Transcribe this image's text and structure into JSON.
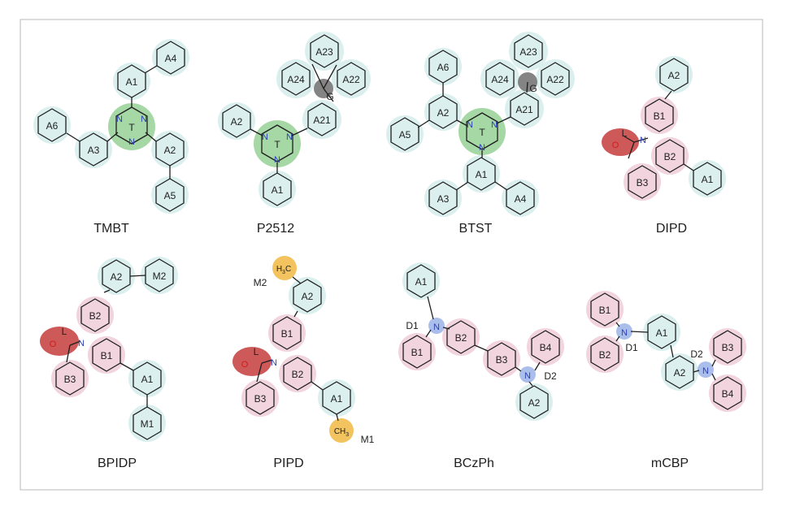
{
  "colors": {
    "frame": "#b9b9b9",
    "ring_stroke": "#1e1e1e",
    "halo_acceptor": "#d5ecec",
    "halo_triazine": "#5cb85c",
    "halo_donor_ring": "#ecc5d3",
    "halo_lactam": "#c0312f",
    "halo_methyl": "#f0b437",
    "halo_spiro": "#6f6f6f",
    "halo_nitrogen": "#8ea8e6",
    "nitrogen_text": "#2b3fb5",
    "oxygen_text": "#d11b1b"
  },
  "molecules": {
    "tmbt": {
      "name": "TMBT",
      "center_label": "T",
      "rings": [
        "A1",
        "A2",
        "A3",
        "A4",
        "A5",
        "A6"
      ],
      "atoms": [
        "N",
        "N",
        "N"
      ]
    },
    "p2512": {
      "name": "P2512",
      "center_label": "T",
      "spiro_label": "G",
      "rings": [
        "A1",
        "A2",
        "A21",
        "A22",
        "A23",
        "A24"
      ],
      "atoms": [
        "N",
        "N",
        "N"
      ]
    },
    "btst": {
      "name": "BTST",
      "center_label": "T",
      "spiro_label": "G",
      "rings": [
        "A1",
        "A2",
        "A3",
        "A4",
        "A5",
        "A6",
        "A21",
        "A22",
        "A23",
        "A24"
      ],
      "atoms": [
        "N",
        "N",
        "N"
      ]
    },
    "dipd": {
      "name": "DIPD",
      "lactam_label": "L",
      "rings": [
        "A1",
        "A2",
        "B1",
        "B2",
        "B3"
      ],
      "atoms": [
        "N",
        "O"
      ]
    },
    "bpidp": {
      "name": "BPIDP",
      "lactam_label": "L",
      "rings": [
        "A1",
        "A2",
        "B1",
        "B2",
        "B3",
        "M1",
        "M2"
      ],
      "atoms": [
        "N",
        "O"
      ]
    },
    "pipd": {
      "name": "PIPD",
      "lactam_label": "L",
      "rings": [
        "A1",
        "A2",
        "B1",
        "B2",
        "B3"
      ],
      "methyl_labels": [
        "M1",
        "M2"
      ],
      "methyl_text": "CH",
      "methyl_sub": "3",
      "methyl_text_b": "H",
      "methyl_sub_b": "3",
      "methyl_text_b2": "C",
      "atoms": [
        "N",
        "O"
      ]
    },
    "bczph": {
      "name": "BCzPh",
      "rings": [
        "A1",
        "A2",
        "B1",
        "B2",
        "B3",
        "B4"
      ],
      "donor_labels": [
        "D1",
        "D2"
      ],
      "atoms": [
        "N",
        "N"
      ]
    },
    "mcbp": {
      "name": "mCBP",
      "rings": [
        "A1",
        "A2",
        "B1",
        "B2",
        "B3",
        "B4"
      ],
      "donor_labels": [
        "D1",
        "D2"
      ],
      "atoms": [
        "N",
        "N"
      ]
    }
  }
}
